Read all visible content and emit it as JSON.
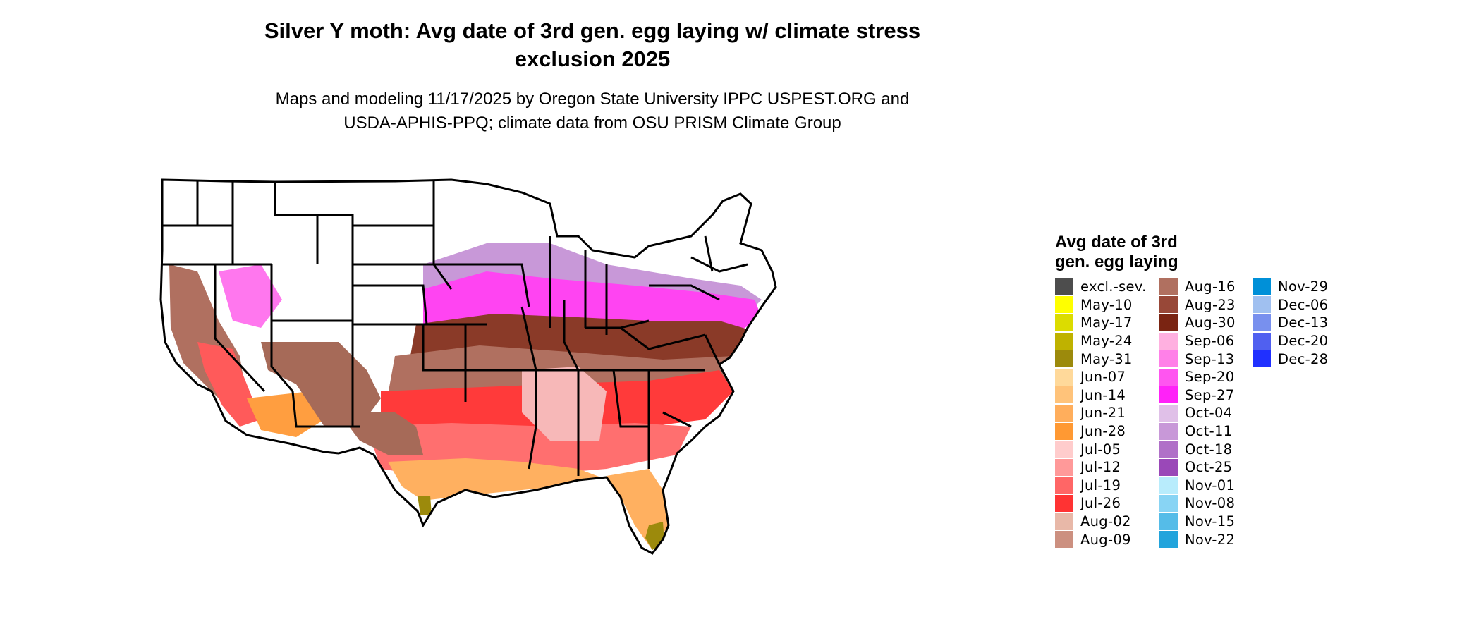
{
  "title_lines": [
    "Silver Y moth: Avg date of 3rd gen. egg laying w/ climate stress",
    "exclusion 2025"
  ],
  "subtitle_lines": [
    "Maps and modeling 11/17/2025 by Oregon State University IPPC USPEST.ORG and",
    "USDA-APHIS-PPQ; climate data from OSU PRISM Climate Group"
  ],
  "legend": {
    "title_lines": [
      "Avg date of 3rd",
      "gen. egg laying"
    ],
    "columns": [
      [
        {
          "label": "excl.-sev.",
          "color": "#4d4d4d"
        },
        {
          "label": "May-10",
          "color": "#ffff00"
        },
        {
          "label": "May-17",
          "color": "#dcdc00"
        },
        {
          "label": "May-24",
          "color": "#bfb200"
        },
        {
          "label": "May-31",
          "color": "#9c8a0c"
        },
        {
          "label": "Jun-07",
          "color": "#ffd99a"
        },
        {
          "label": "Jun-14",
          "color": "#ffc37a"
        },
        {
          "label": "Jun-21",
          "color": "#ffae5c"
        },
        {
          "label": "Jun-28",
          "color": "#ff9933"
        },
        {
          "label": "Jul-05",
          "color": "#ffcccc"
        },
        {
          "label": "Jul-12",
          "color": "#ff9999"
        },
        {
          "label": "Jul-19",
          "color": "#ff6666"
        },
        {
          "label": "Jul-26",
          "color": "#ff3333"
        },
        {
          "label": "Aug-02",
          "color": "#e8b8a8"
        },
        {
          "label": "Aug-09",
          "color": "#cc9080"
        }
      ],
      [
        {
          "label": "Aug-16",
          "color": "#b07060"
        },
        {
          "label": "Aug-23",
          "color": "#984838"
        },
        {
          "label": "Aug-30",
          "color": "#7a2412"
        },
        {
          "label": "Sep-06",
          "color": "#ffb0e0"
        },
        {
          "label": "Sep-13",
          "color": "#ff80e8"
        },
        {
          "label": "Sep-20",
          "color": "#ff55f0"
        },
        {
          "label": "Sep-27",
          "color": "#ff22f8"
        },
        {
          "label": "Oct-04",
          "color": "#e0c0e8"
        },
        {
          "label": "Oct-11",
          "color": "#c898d8"
        },
        {
          "label": "Oct-18",
          "color": "#b070c8"
        },
        {
          "label": "Oct-25",
          "color": "#9a48b8"
        },
        {
          "label": "Nov-01",
          "color": "#b8ecfc"
        },
        {
          "label": "Nov-08",
          "color": "#88d4f4"
        },
        {
          "label": "Nov-15",
          "color": "#55bce8"
        },
        {
          "label": "Nov-22",
          "color": "#22a4dc"
        }
      ],
      [
        {
          "label": "Nov-29",
          "color": "#0090d8"
        },
        {
          "label": "Dec-06",
          "color": "#a0c0f0"
        },
        {
          "label": "Dec-13",
          "color": "#7890ee"
        },
        {
          "label": "Dec-20",
          "color": "#5060f0"
        },
        {
          "label": "Dec-28",
          "color": "#2030ff"
        }
      ]
    ]
  }
}
